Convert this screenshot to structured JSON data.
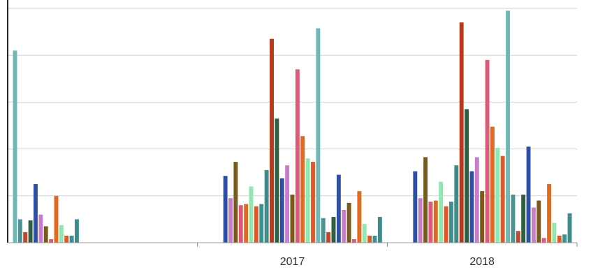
{
  "chart_data": {
    "type": "bar",
    "categories": [
      "",
      "2017",
      "2018"
    ],
    "ylim": [
      0,
      10
    ],
    "grid": true,
    "legend": "none",
    "series": [
      {
        "color": "#6fb8b8",
        "values": [
          8.2,
          0,
          0
        ]
      },
      {
        "color": "#4f9292",
        "values": [
          1.0,
          0,
          0
        ]
      },
      {
        "color": "#c1462f",
        "values": [
          0.45,
          0,
          0
        ]
      },
      {
        "color": "#2f5f3f",
        "values": [
          0.95,
          0,
          0
        ]
      },
      {
        "color": "#2f4fa3",
        "values": [
          2.5,
          2.85,
          3.05
        ]
      },
      {
        "color": "#c97dc9",
        "values": [
          1.2,
          1.9,
          1.9
        ]
      },
      {
        "color": "#7a5a1a",
        "values": [
          0.7,
          3.45,
          3.65
        ]
      },
      {
        "color": "#e05878",
        "values": [
          0.15,
          1.6,
          1.75
        ]
      },
      {
        "color": "#e06a20",
        "values": [
          2.0,
          1.65,
          1.8
        ]
      },
      {
        "color": "#8fe8b0",
        "values": [
          0.75,
          2.4,
          2.6
        ]
      },
      {
        "color": "#e05828",
        "values": [
          0.3,
          1.55,
          1.55
        ]
      },
      {
        "color": "#3f8f8f",
        "values": [
          0.3,
          1.65,
          1.75
        ]
      },
      {
        "color": "#3c8c8c",
        "values": [
          1.0,
          3.1,
          3.3
        ]
      },
      {
        "color": "#b8381c",
        "values": [
          0,
          8.7,
          9.4
        ]
      },
      {
        "color": "#2f5f3f",
        "values": [
          0,
          5.3,
          5.7
        ]
      },
      {
        "color": "#2f4fa3",
        "values": [
          0,
          2.75,
          3.05
        ]
      },
      {
        "color": "#c97dc9",
        "values": [
          0,
          3.3,
          3.65
        ]
      },
      {
        "color": "#7a5a1a",
        "values": [
          0,
          2.05,
          2.2
        ]
      },
      {
        "color": "#e05878",
        "values": [
          0,
          7.4,
          7.8
        ]
      },
      {
        "color": "#e06a20",
        "values": [
          0,
          4.55,
          4.95
        ]
      },
      {
        "color": "#8fe8b0",
        "values": [
          0,
          3.6,
          4.05
        ]
      },
      {
        "color": "#e05828",
        "values": [
          0,
          3.45,
          3.7
        ]
      },
      {
        "color": "#6fb8b8",
        "values": [
          0,
          9.15,
          9.9
        ]
      },
      {
        "color": "#4f9292",
        "values": [
          0,
          1.05,
          2.05
        ]
      },
      {
        "color": "#c1462f",
        "values": [
          0,
          0.45,
          0.5
        ]
      },
      {
        "color": "#2f5f3f",
        "values": [
          0,
          1.1,
          2.05
        ]
      },
      {
        "color": "#2f4fa3",
        "values": [
          0,
          2.9,
          4.1
        ]
      },
      {
        "color": "#c97dc9",
        "values": [
          0,
          1.4,
          1.5
        ]
      },
      {
        "color": "#7a5a1a",
        "values": [
          0,
          1.7,
          1.8
        ]
      },
      {
        "color": "#e05878",
        "values": [
          0,
          0.15,
          0.2
        ]
      },
      {
        "color": "#e06a20",
        "values": [
          0,
          2.2,
          2.5
        ]
      },
      {
        "color": "#8fe8b0",
        "values": [
          0,
          0.8,
          0.85
        ]
      },
      {
        "color": "#e05828",
        "values": [
          0,
          0.3,
          0.3
        ]
      },
      {
        "color": "#3f8f8f",
        "values": [
          0,
          0.3,
          0.35
        ]
      },
      {
        "color": "#3c8c8c",
        "values": [
          0,
          1.1,
          1.25
        ]
      }
    ]
  }
}
